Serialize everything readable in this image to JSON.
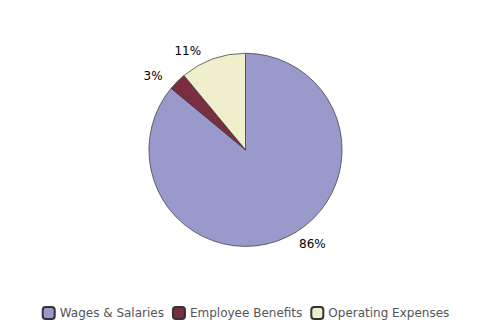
{
  "chart_data": {
    "type": "pie",
    "categories": [
      "Wages & Salaries",
      "Employee Benefits",
      "Operating Expenses"
    ],
    "values": [
      86,
      3,
      11
    ],
    "value_labels": [
      "86%",
      "3%",
      "11%"
    ],
    "colors": [
      "#9999CC",
      "#7B2D42",
      "#EFEFCC"
    ],
    "data_labels": true,
    "legend": "bottom"
  }
}
